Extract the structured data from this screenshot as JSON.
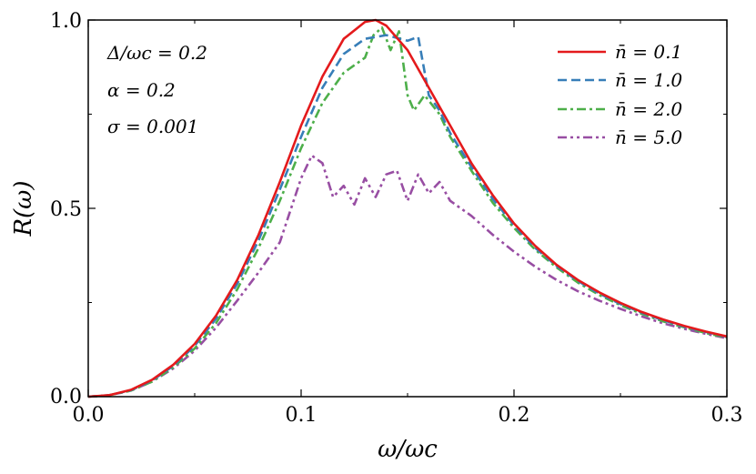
{
  "chart_data": {
    "type": "line",
    "title": "",
    "xlabel": "ω/ωc",
    "ylabel": "R(ω)",
    "xlim": [
      0.0,
      0.3
    ],
    "ylim": [
      0.0,
      1.0
    ],
    "xticks": [
      0.0,
      0.1,
      0.2,
      0.3
    ],
    "xtick_labels": [
      "0.0",
      "0.1",
      "0.2",
      "0.3"
    ],
    "yticks": [
      0.0,
      0.5,
      1.0
    ],
    "ytick_labels": [
      "0.0",
      "0.5",
      "1.0"
    ],
    "grid": false,
    "annotations": [
      "Δ/ωc = 0.2",
      "α = 0.2",
      "σ = 0.001"
    ],
    "legend_position": "top-right",
    "series": [
      {
        "name": "n̄ = 0.1",
        "color": "#e41a1c",
        "dash": "solid",
        "x": [
          0.0,
          0.01,
          0.02,
          0.03,
          0.04,
          0.05,
          0.06,
          0.07,
          0.08,
          0.09,
          0.1,
          0.11,
          0.12,
          0.13,
          0.135,
          0.14,
          0.15,
          0.16,
          0.17,
          0.18,
          0.19,
          0.2,
          0.21,
          0.22,
          0.23,
          0.24,
          0.25,
          0.26,
          0.27,
          0.28,
          0.29,
          0.3
        ],
        "y": [
          0.0,
          0.004,
          0.018,
          0.045,
          0.085,
          0.14,
          0.215,
          0.31,
          0.43,
          0.57,
          0.72,
          0.85,
          0.95,
          0.995,
          1.0,
          0.985,
          0.92,
          0.82,
          0.72,
          0.62,
          0.535,
          0.46,
          0.4,
          0.35,
          0.31,
          0.277,
          0.249,
          0.225,
          0.205,
          0.188,
          0.173,
          0.16
        ]
      },
      {
        "name": "n̄ = 1.0",
        "color": "#377eb8",
        "dash": "dashed",
        "x": [
          0.0,
          0.01,
          0.02,
          0.03,
          0.04,
          0.05,
          0.06,
          0.07,
          0.08,
          0.09,
          0.1,
          0.11,
          0.12,
          0.13,
          0.14,
          0.15,
          0.155,
          0.16,
          0.165,
          0.17,
          0.18,
          0.19,
          0.2,
          0.21,
          0.22,
          0.23,
          0.24,
          0.25,
          0.26,
          0.27,
          0.28,
          0.29,
          0.3
        ],
        "y": [
          0.0,
          0.004,
          0.017,
          0.043,
          0.082,
          0.135,
          0.207,
          0.3,
          0.415,
          0.55,
          0.69,
          0.82,
          0.91,
          0.95,
          0.96,
          0.945,
          0.955,
          0.8,
          0.76,
          0.7,
          0.61,
          0.525,
          0.455,
          0.395,
          0.347,
          0.307,
          0.274,
          0.246,
          0.223,
          0.203,
          0.186,
          0.172,
          0.159
        ]
      },
      {
        "name": "n̄ = 2.0",
        "color": "#4daf4a",
        "dash": "dashdot",
        "x": [
          0.0,
          0.01,
          0.02,
          0.03,
          0.04,
          0.05,
          0.06,
          0.07,
          0.08,
          0.09,
          0.1,
          0.11,
          0.12,
          0.13,
          0.134,
          0.138,
          0.142,
          0.146,
          0.15,
          0.153,
          0.158,
          0.165,
          0.17,
          0.18,
          0.19,
          0.2,
          0.21,
          0.22,
          0.23,
          0.24,
          0.25,
          0.26,
          0.27,
          0.28,
          0.29,
          0.3
        ],
        "y": [
          0.0,
          0.004,
          0.016,
          0.04,
          0.078,
          0.128,
          0.195,
          0.285,
          0.395,
          0.52,
          0.66,
          0.78,
          0.86,
          0.9,
          0.96,
          0.98,
          0.92,
          0.97,
          0.8,
          0.76,
          0.8,
          0.75,
          0.69,
          0.6,
          0.515,
          0.448,
          0.39,
          0.343,
          0.303,
          0.27,
          0.243,
          0.22,
          0.2,
          0.184,
          0.169,
          0.157
        ]
      },
      {
        "name": "n̄ = 5.0",
        "color": "#984ea3",
        "dash": "dashdotdot",
        "x": [
          0.0,
          0.01,
          0.02,
          0.03,
          0.04,
          0.05,
          0.06,
          0.07,
          0.08,
          0.09,
          0.1,
          0.105,
          0.11,
          0.115,
          0.12,
          0.125,
          0.13,
          0.135,
          0.14,
          0.145,
          0.15,
          0.155,
          0.16,
          0.165,
          0.17,
          0.18,
          0.19,
          0.2,
          0.21,
          0.22,
          0.23,
          0.24,
          0.25,
          0.26,
          0.27,
          0.28,
          0.29,
          0.3
        ],
        "y": [
          0.0,
          0.004,
          0.016,
          0.04,
          0.075,
          0.122,
          0.183,
          0.255,
          0.33,
          0.41,
          0.58,
          0.64,
          0.62,
          0.53,
          0.56,
          0.51,
          0.58,
          0.53,
          0.59,
          0.6,
          0.52,
          0.59,
          0.54,
          0.57,
          0.52,
          0.48,
          0.43,
          0.385,
          0.345,
          0.31,
          0.28,
          0.255,
          0.233,
          0.213,
          0.195,
          0.18,
          0.167,
          0.155
        ]
      }
    ]
  }
}
